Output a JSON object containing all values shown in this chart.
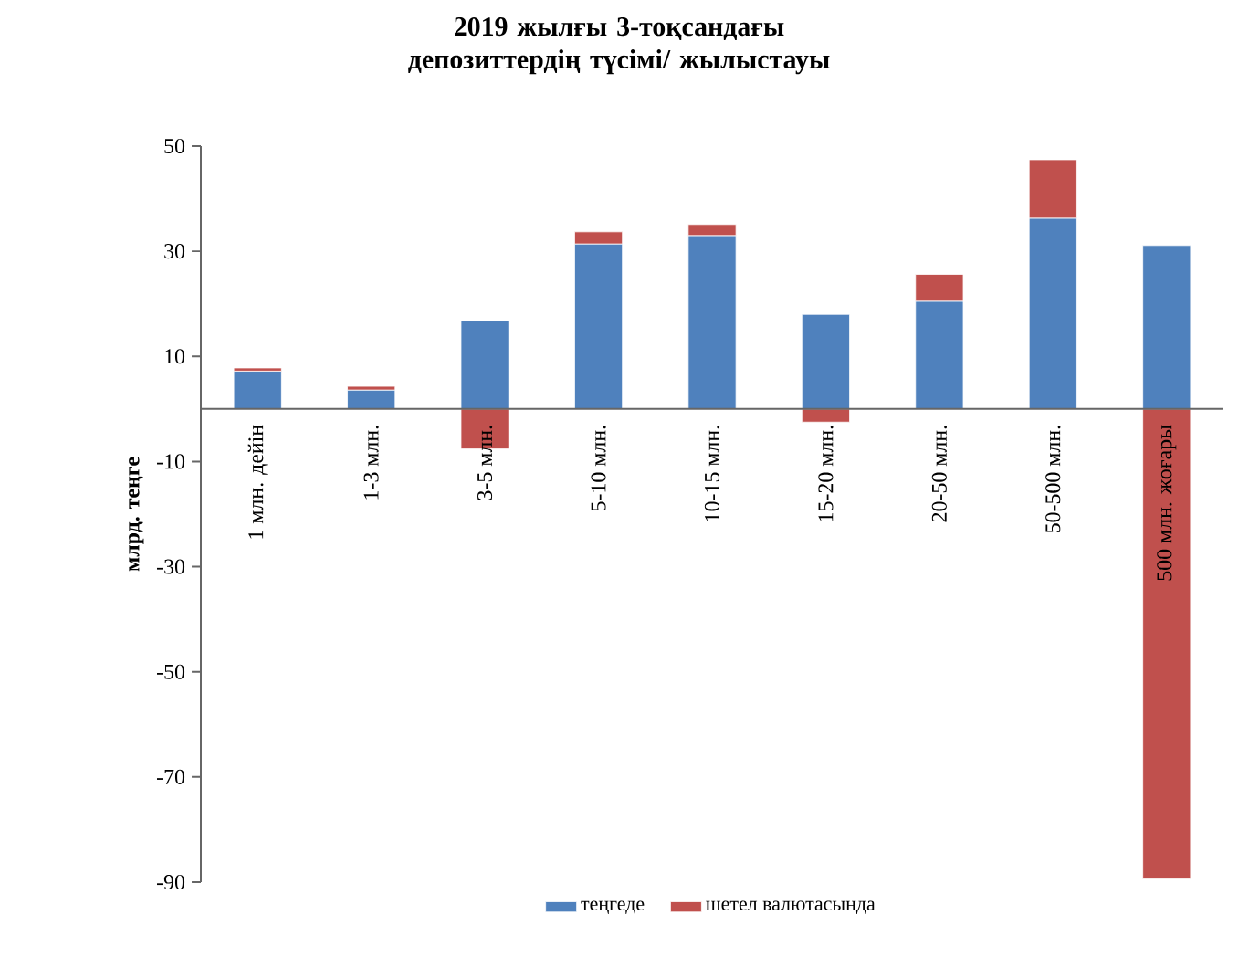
{
  "chart_data": {
    "type": "bar",
    "title": "2019 жылғы 3-тоқсандағы депозиттердің түсімі/ жылыстауы",
    "ylabel": "млрд. теңге",
    "categories": [
      "1 млн. дейін",
      "1-3 млн.",
      "3-5 млн.",
      "5-10 млн.",
      "10-15 млн.",
      "15-20 млн.",
      "20-50 млн.",
      "50-500 млн.",
      "500 млн. жоғары"
    ],
    "series": [
      {
        "name": "теңгеде",
        "color": "#4f81bd",
        "values": [
          7.2,
          3.6,
          16.8,
          31.4,
          33.0,
          18.0,
          20.5,
          36.3,
          31.1
        ]
      },
      {
        "name": "шетел валютасында",
        "color": "#c0504d",
        "values": [
          0.6,
          0.7,
          -7.6,
          2.3,
          2.1,
          -2.5,
          5.1,
          11.1,
          -89.4
        ]
      }
    ],
    "stacked": true,
    "ylim": [
      -90,
      50
    ],
    "yticks": [
      50,
      30,
      10,
      -10,
      -30,
      -50,
      -70,
      -90
    ],
    "legend": "bottom"
  }
}
